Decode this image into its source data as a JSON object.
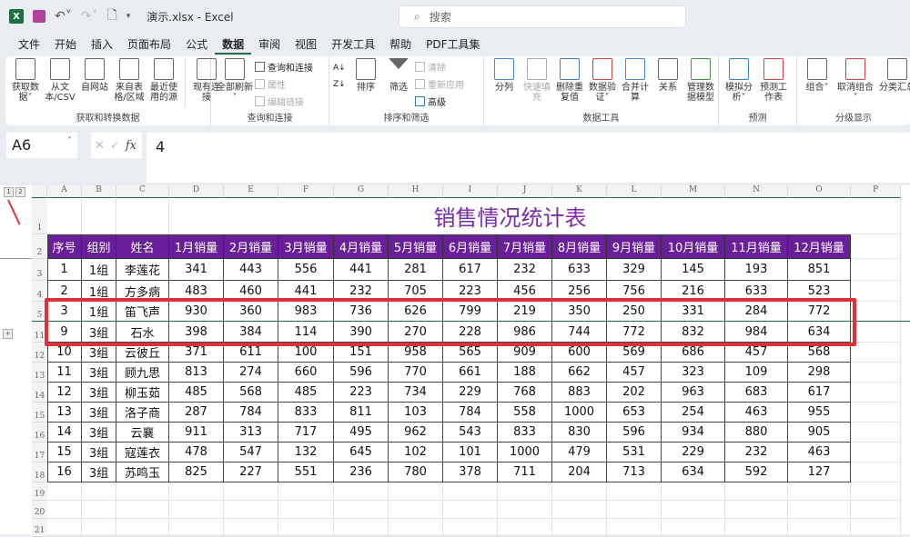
{
  "titlebar": {
    "filename": "演示.xlsx  -  Excel",
    "search_placeholder": "搜索"
  },
  "menu": [
    "文件",
    "开始",
    "插入",
    "页面布局",
    "公式",
    "数据",
    "审阅",
    "视图",
    "开发工具",
    "帮助",
    "PDF工具集"
  ],
  "active_menu": "数据",
  "ribbon": {
    "g1": {
      "label": "获取和转换数据",
      "buttons": [
        "获取数据˅",
        "从文本/CSV",
        "自网站",
        "来自表格/区域",
        "最近使用的源",
        "现有连接"
      ]
    },
    "g2": {
      "label": "查询和连接",
      "big": "全部刷新˅",
      "small": [
        "查询和连接",
        "属性",
        "编辑链接"
      ]
    },
    "g3": {
      "label": "排序和筛选",
      "sort": "排序",
      "filter": "筛选",
      "small": [
        "清除",
        "重新应用",
        "高级"
      ]
    },
    "g4": {
      "label": "数据工具",
      "buttons": [
        "分列",
        "快速填充",
        "删除重复值",
        "数据验证˅",
        "合并计算",
        "关系",
        "管理数据模型"
      ]
    },
    "g5": {
      "label": "预测",
      "buttons": [
        "模拟分析˅",
        "预测工作表"
      ]
    },
    "g6": {
      "label": "分级显示",
      "buttons": [
        "组合˅",
        "取消组合˅",
        "分类汇总"
      ]
    }
  },
  "formula": {
    "name_box": "A6",
    "value": "4"
  },
  "outline_levels": [
    "1",
    "2"
  ],
  "columns": [
    "A",
    "B",
    "C",
    "D",
    "E",
    "F",
    "G",
    "H",
    "I",
    "J",
    "K",
    "L",
    "M",
    "N",
    "O",
    "P"
  ],
  "row_numbers": [
    "1",
    "2",
    "3",
    "4",
    "5",
    "11",
    "12",
    "13",
    "14",
    "15",
    "16",
    "17",
    "18",
    "19",
    "20",
    "21"
  ],
  "table": {
    "title": "销售情况统计表",
    "headers": [
      "序号",
      "组别",
      "姓名",
      "1月销量",
      "2月销量",
      "3月销量",
      "4月销量",
      "5月销量",
      "6月销量",
      "7月销量",
      "8月销量",
      "9月销量",
      "10月销量",
      "11月销量",
      "12月销量"
    ],
    "rows": [
      [
        "1",
        "1组",
        "李莲花",
        "341",
        "443",
        "556",
        "441",
        "281",
        "617",
        "232",
        "633",
        "329",
        "145",
        "193",
        "851"
      ],
      [
        "2",
        "1组",
        "方多病",
        "483",
        "460",
        "441",
        "232",
        "705",
        "223",
        "456",
        "256",
        "756",
        "216",
        "633",
        "523"
      ],
      [
        "3",
        "1组",
        "笛飞声",
        "930",
        "360",
        "983",
        "736",
        "626",
        "799",
        "219",
        "350",
        "250",
        "331",
        "284",
        "772"
      ],
      [
        "9",
        "3组",
        "石水",
        "398",
        "384",
        "114",
        "390",
        "270",
        "228",
        "986",
        "744",
        "772",
        "832",
        "984",
        "634"
      ],
      [
        "10",
        "3组",
        "云彼丘",
        "371",
        "611",
        "100",
        "151",
        "958",
        "565",
        "909",
        "600",
        "569",
        "686",
        "457",
        "568"
      ],
      [
        "11",
        "3组",
        "顾九思",
        "813",
        "274",
        "660",
        "596",
        "770",
        "661",
        "188",
        "662",
        "457",
        "323",
        "109",
        "298"
      ],
      [
        "12",
        "3组",
        "柳玉茹",
        "485",
        "568",
        "485",
        "223",
        "734",
        "229",
        "768",
        "883",
        "202",
        "963",
        "683",
        "617"
      ],
      [
        "13",
        "3组",
        "洛子商",
        "287",
        "784",
        "833",
        "811",
        "103",
        "784",
        "558",
        "1000",
        "653",
        "254",
        "463",
        "955"
      ],
      [
        "14",
        "3组",
        "云襄",
        "911",
        "313",
        "717",
        "495",
        "962",
        "543",
        "833",
        "830",
        "596",
        "934",
        "880",
        "905"
      ],
      [
        "15",
        "3组",
        "寇莲衣",
        "478",
        "547",
        "132",
        "645",
        "102",
        "101",
        "1000",
        "479",
        "531",
        "229",
        "232",
        "463"
      ],
      [
        "16",
        "3组",
        "苏鸣玉",
        "825",
        "227",
        "551",
        "236",
        "780",
        "378",
        "711",
        "204",
        "713",
        "634",
        "592",
        "127"
      ]
    ]
  },
  "colors": {
    "header_bg": "#6a1f9a",
    "title": "#7b2aa9",
    "highlight": "#e0313a",
    "excel_green": "#1d6f42"
  }
}
